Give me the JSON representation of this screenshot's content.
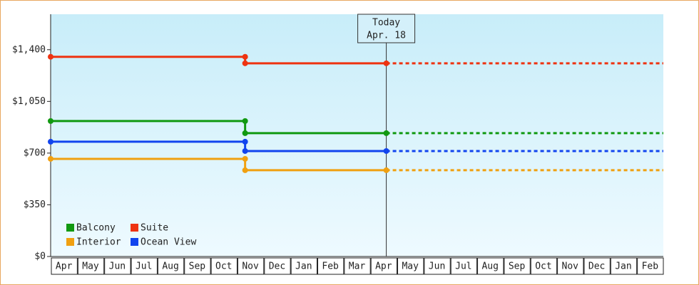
{
  "chart_data": {
    "type": "step-line",
    "categories": [
      "Apr",
      "May",
      "Jun",
      "Jul",
      "Aug",
      "Sep",
      "Oct",
      "Nov",
      "Dec",
      "Jan",
      "Feb",
      "Mar",
      "Apr",
      "May",
      "Jun",
      "Jul",
      "Aug",
      "Sep",
      "Oct",
      "Nov",
      "Dec",
      "Jan",
      "Feb"
    ],
    "xlim": [
      0,
      23
    ],
    "ylim": [
      0,
      1640
    ],
    "yticks": [
      {
        "value": 0,
        "label": "$0"
      },
      {
        "value": 350,
        "label": "$350"
      },
      {
        "value": 700,
        "label": "$700"
      },
      {
        "value": 1050,
        "label": "$1,050"
      },
      {
        "value": 1400,
        "label": "$1,400"
      }
    ],
    "series": [
      {
        "name": "Balcony",
        "color": "#119911",
        "x": [
          0,
          7.3,
          7.3,
          12.6
        ],
        "values": [
          917,
          917,
          835,
          835
        ]
      },
      {
        "name": "Suite",
        "color": "#ee3311",
        "x": [
          0,
          7.3,
          7.3,
          12.6
        ],
        "values": [
          1352,
          1352,
          1308,
          1308
        ]
      },
      {
        "name": "Interior",
        "color": "#f0a010",
        "x": [
          0,
          7.3,
          7.3,
          12.6
        ],
        "values": [
          661,
          661,
          584,
          584
        ]
      },
      {
        "name": "Ocean View",
        "color": "#1144ee",
        "x": [
          0,
          7.3,
          7.3,
          12.6
        ],
        "values": [
          777,
          777,
          714,
          714
        ]
      }
    ],
    "annotation": {
      "x": 12.6,
      "text": [
        "Today",
        "Apr. 18"
      ]
    },
    "legend": "lower-left"
  }
}
